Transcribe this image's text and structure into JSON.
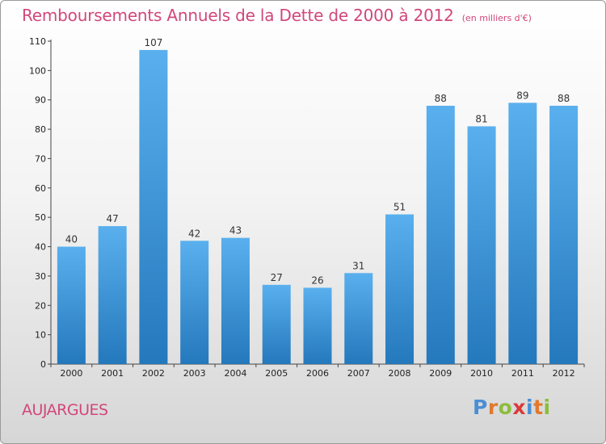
{
  "title": "Remboursements Annuels de la Dette de 2000 à 2012",
  "subtitle": "(en milliers d'€)",
  "commune": "AUJARGUES",
  "logo": {
    "letters": [
      "P",
      "r",
      "o",
      "x",
      "i",
      "t",
      "i"
    ],
    "colors": [
      "#4a8fd4",
      "#e07a2f",
      "#8cbd3c",
      "#d93a3a",
      "#4a8fd4",
      "#e07a2f",
      "#8cbd3c"
    ]
  },
  "colors": {
    "bar_light": "#5ab0ee",
    "bar_dark": "#2478bc",
    "title": "#d2477a"
  },
  "chart_data": {
    "type": "bar",
    "title": "Remboursements Annuels de la Dette de 2000 à 2012",
    "categories": [
      "2000",
      "2001",
      "2002",
      "2003",
      "2004",
      "2005",
      "2006",
      "2007",
      "2008",
      "2009",
      "2010",
      "2011",
      "2012"
    ],
    "values": [
      40,
      47,
      107,
      42,
      43,
      27,
      26,
      31,
      51,
      88,
      81,
      89,
      88
    ],
    "yticks": [
      0,
      10,
      20,
      30,
      40,
      50,
      60,
      70,
      80,
      90,
      100,
      110
    ],
    "ylim": [
      0,
      110
    ],
    "grid": false,
    "legend": "none"
  }
}
